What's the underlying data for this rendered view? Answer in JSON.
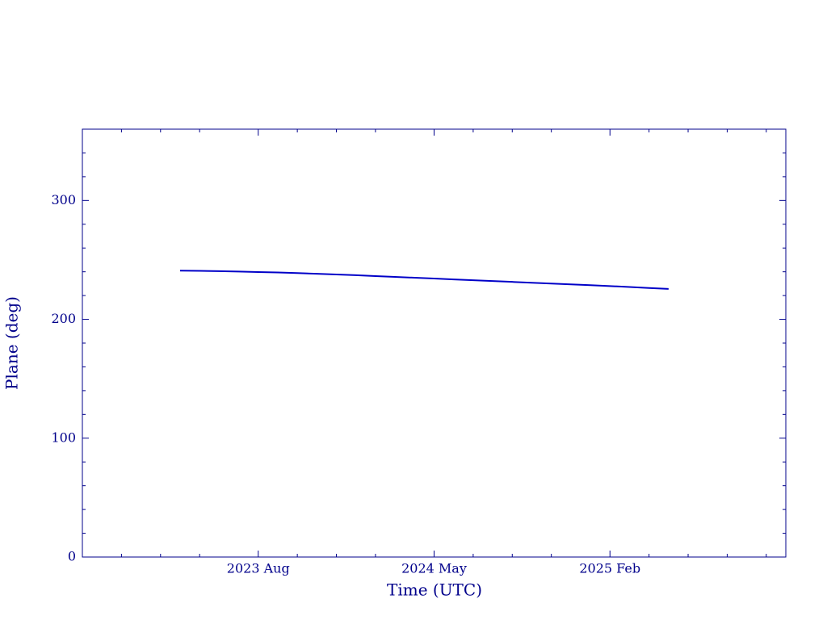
{
  "chart_data": {
    "type": "line",
    "xlabel": "Time (UTC)",
    "ylabel": "Plane (deg)",
    "x": [
      "2023-04",
      "2023-05",
      "2023-06",
      "2023-07",
      "2023-08",
      "2023-09",
      "2023-10",
      "2023-11",
      "2023-12",
      "2024-01",
      "2024-02",
      "2024-03",
      "2024-04",
      "2024-05",
      "2024-06",
      "2024-07",
      "2024-08",
      "2024-09",
      "2024-10",
      "2024-11",
      "2024-12",
      "2025-01",
      "2025-02",
      "2025-03",
      "2025-04",
      "2025-05"
    ],
    "series": [
      {
        "color": "#0000c8",
        "values": [
          241,
          240.8,
          240.5,
          240.2,
          239.8,
          239.4,
          238.9,
          238.3,
          237.7,
          237.1,
          236.4,
          235.7,
          235.0,
          234.3,
          233.6,
          232.9,
          232.2,
          231.5,
          230.8,
          230.1,
          229.4,
          228.7,
          228.0,
          227.2,
          226.4,
          225.6
        ]
      }
    ],
    "xlim": [
      "2022-11",
      "2025-11"
    ],
    "xticks": [
      {
        "value": "2023-08",
        "label": "2023 Aug"
      },
      {
        "value": "2024-05",
        "label": "2024 May"
      },
      {
        "value": "2025-02",
        "label": "2025 Feb"
      }
    ],
    "xminorticks": [
      "2023-01",
      "2023-03",
      "2023-05",
      "2023-10",
      "2023-12",
      "2024-02",
      "2024-07",
      "2024-09",
      "2024-11",
      "2025-04",
      "2025-06",
      "2025-08",
      "2025-10"
    ],
    "ylim": [
      0,
      360
    ],
    "yticks": [
      0,
      100,
      200,
      300
    ],
    "yminorticks": [
      20,
      40,
      60,
      80,
      120,
      140,
      160,
      180,
      220,
      240,
      260,
      280,
      320,
      340
    ]
  }
}
